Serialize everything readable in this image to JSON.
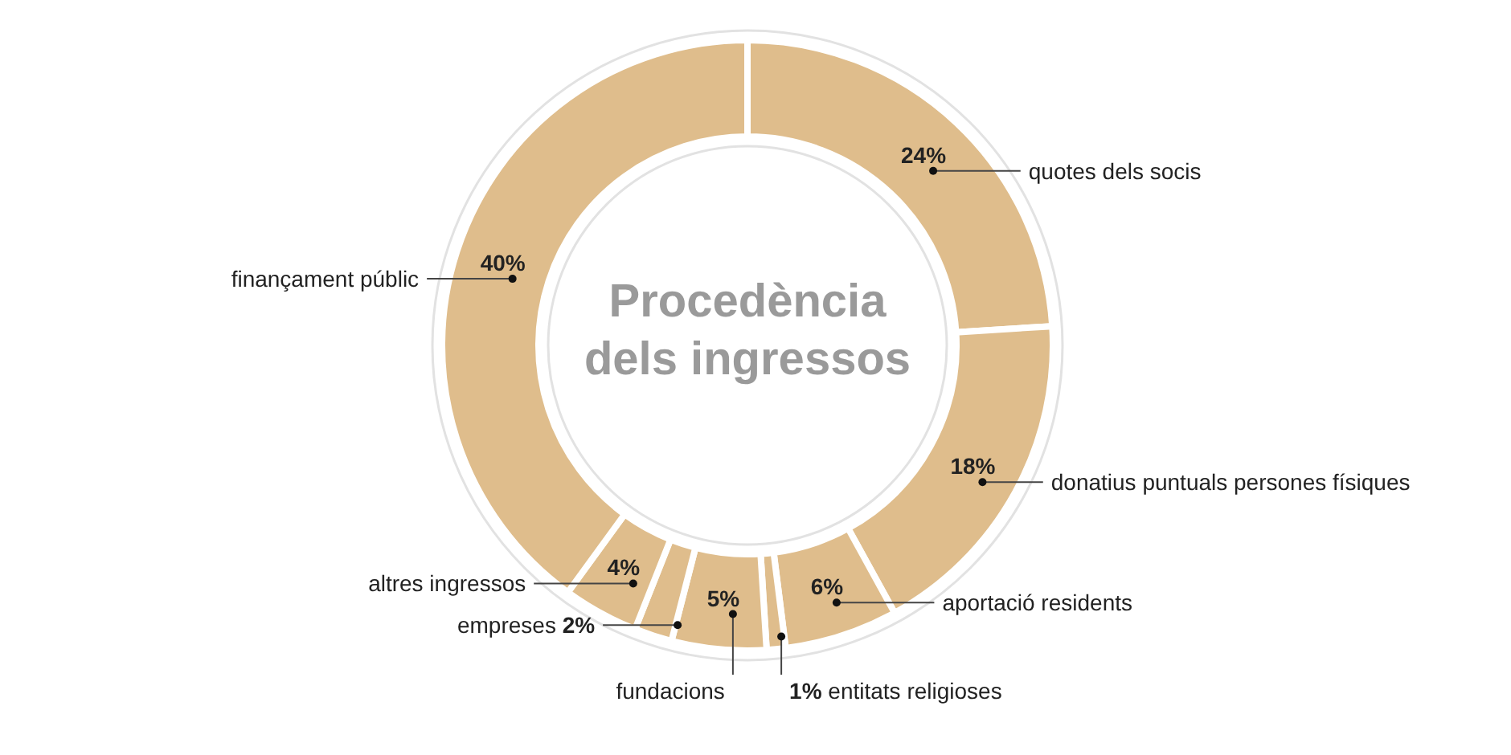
{
  "chart_data": {
    "type": "donut",
    "title": "Procedència dels ingressos",
    "categories": [
      "quotes dels socis",
      "donatius puntuals persones físiques",
      "aportació residents",
      "entitats religioses",
      "fundacions",
      "empreses",
      "altres ingressos",
      "finançament públic"
    ],
    "values": [
      24,
      18,
      6,
      1,
      5,
      2,
      4,
      40
    ],
    "colors": [
      "#dfbd8c",
      "#dfbd8c",
      "#dfbd8c",
      "#dfbd8c",
      "#dfbd8c",
      "#dfbd8c",
      "#dfbd8c",
      "#dfbd8c"
    ],
    "value_labels": [
      "24%",
      "18%",
      "6%",
      "1%",
      "5%",
      "2%",
      "4%",
      "40%"
    ]
  }
}
